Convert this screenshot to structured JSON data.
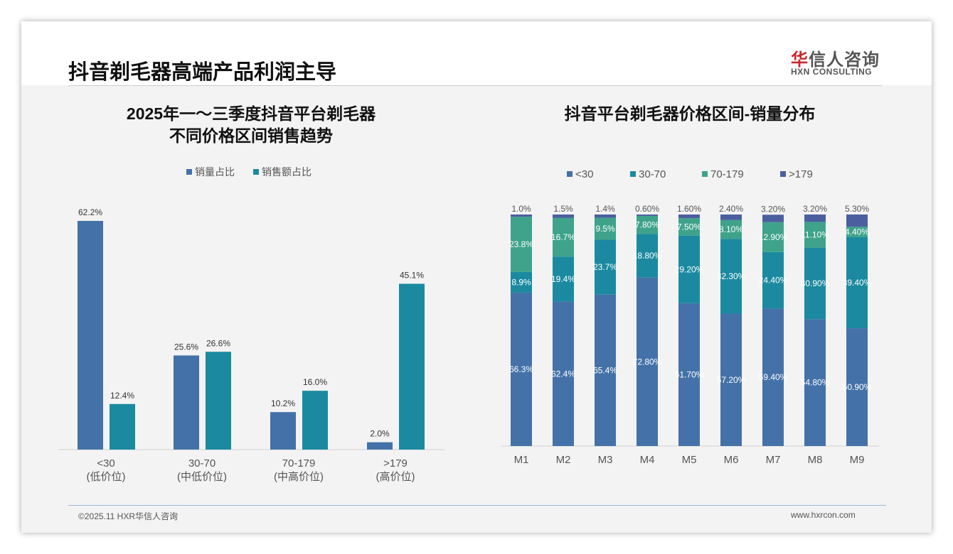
{
  "header": {
    "title": "抖音剃毛器高端产品利润主导",
    "logo_cn": "华信人咨询",
    "logo_en": "HXN CONSULTING"
  },
  "footer": {
    "left": "©2025.11 HXR华信人咨询",
    "right": "www.hxrcon.com"
  },
  "colors": {
    "blue": "#4472a8",
    "teal": "#1b8aa0",
    "green": "#3ea38a",
    "navy": "#4b5fa0"
  },
  "chart_data": [
    {
      "type": "bar",
      "title_line1": "2025年一～三季度抖音平台剃毛器",
      "title_line2": "不同价格区间销售趋势",
      "categories": [
        "<30",
        "30-70",
        "70-179",
        ">179"
      ],
      "subcategories": [
        "(低价位)",
        "(中低价位)",
        "(中高价位)",
        "(高价位)"
      ],
      "series": [
        {
          "name": "销量占比",
          "values": [
            62.2,
            25.6,
            10.2,
            2.0
          ],
          "labels": [
            "62.2%",
            "25.6%",
            "10.2%",
            "2.0%"
          ]
        },
        {
          "name": "销售额占比",
          "values": [
            12.4,
            26.6,
            16.0,
            45.1
          ],
          "labels": [
            "12.4%",
            "26.6%",
            "16.0%",
            "45.1%"
          ]
        }
      ],
      "ylim": [
        0,
        70
      ],
      "legend": "top",
      "grid": false
    },
    {
      "type": "bar",
      "stacked": true,
      "title": "抖音平台剃毛器价格区间-销量分布",
      "categories": [
        "M1",
        "M2",
        "M3",
        "M4",
        "M5",
        "M6",
        "M7",
        "M8",
        "M9"
      ],
      "series": [
        {
          "name": "<30",
          "values": [
            66.3,
            62.4,
            65.4,
            72.8,
            61.7,
            57.2,
            59.4,
            54.8,
            50.9
          ],
          "labels": [
            "66.3%",
            "62.4%",
            "65.4%",
            "72.80%",
            "61.70%",
            "57.20%",
            "59.40%",
            "54.80%",
            "50.90%"
          ]
        },
        {
          "name": "30-70",
          "values": [
            8.9,
            19.4,
            23.7,
            18.8,
            29.2,
            32.3,
            24.4,
            30.9,
            39.4
          ],
          "labels": [
            "8.9%",
            "19.4%",
            "23.7%",
            "18.80%",
            "29.20%",
            "32.30%",
            "24.40%",
            "30.90%",
            "39.40%"
          ]
        },
        {
          "name": "70-179",
          "values": [
            23.8,
            16.7,
            9.5,
            7.8,
            7.5,
            8.1,
            12.9,
            11.1,
            4.4
          ],
          "labels": [
            "23.8%",
            "16.7%",
            "9.5%",
            "7.80%",
            "7.50%",
            "8.10%",
            "12.90%",
            "11.10%",
            "4.40%"
          ]
        },
        {
          "name": ">179",
          "values": [
            1.0,
            1.5,
            1.4,
            0.6,
            1.6,
            2.4,
            3.2,
            3.2,
            5.3
          ],
          "labels": [
            "1.0%",
            "1.5%",
            "1.4%",
            "0.60%",
            "1.60%",
            "2.40%",
            "3.20%",
            "3.20%",
            "5.30%"
          ]
        }
      ],
      "ylim": [
        0,
        100
      ],
      "legend": "top",
      "grid": false
    }
  ]
}
